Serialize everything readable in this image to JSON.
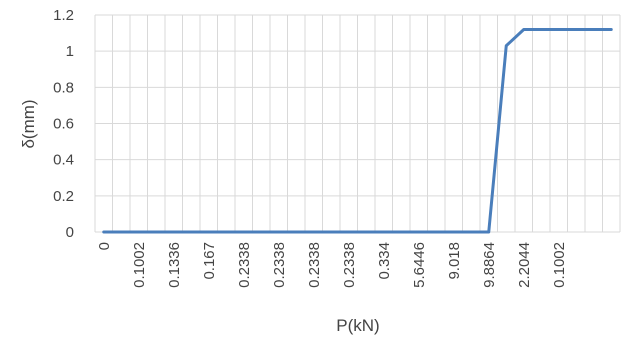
{
  "chart_data": {
    "type": "line",
    "title": "",
    "xlabel": "P(kN)",
    "ylabel": "δ(mm)",
    "ylim": [
      0,
      1.2
    ],
    "y_ticks": [
      "0",
      "0.2",
      "0.4",
      "0.6",
      "0.8",
      "1",
      "1.2"
    ],
    "x_tick_labels": [
      "0",
      "0.1002",
      "0.1336",
      "0.167",
      "0.2338",
      "0.2338",
      "0.2338",
      "0.2338",
      "0.334",
      "5.6446",
      "9.018",
      "9.8864",
      "2.2044",
      "0.1002"
    ],
    "x_tick_every": 2,
    "grid": true,
    "legend": "none",
    "series": [
      {
        "values": [
          0,
          0,
          0,
          0,
          0,
          0,
          0,
          0,
          0,
          0,
          0,
          0,
          0,
          0,
          0,
          0,
          0,
          0,
          0,
          0,
          0,
          0,
          0,
          1.03,
          1.12,
          1.12,
          1.12,
          1.12,
          1.12,
          1.12
        ],
        "color": "#4a7ebb"
      }
    ]
  }
}
